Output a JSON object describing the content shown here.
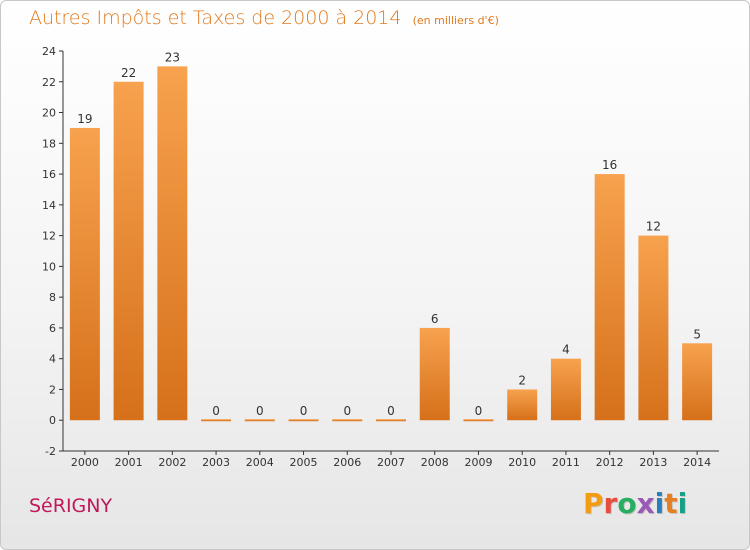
{
  "header": {
    "title": "Autres Impôts et Taxes de 2000 à 2014",
    "subtitle": "(en milliers d'€)"
  },
  "footer": {
    "commune": "SéRIGNY",
    "logo_text": "Proxiti",
    "logo_colors": [
      "#f39c12",
      "#e74c3c",
      "#27ae60",
      "#9b59b6",
      "#2980b9",
      "#e67e22",
      "#16a085"
    ]
  },
  "colors": {
    "bar_light": "#f6a04d",
    "bar_dark": "#d9731c",
    "title": "#e07a1f",
    "commune": "#c2185b"
  },
  "chart_data": {
    "type": "bar",
    "title": "Autres Impôts et Taxes de 2000 à 2014",
    "xlabel": "",
    "ylabel": "",
    "categories": [
      "2000",
      "2001",
      "2002",
      "2003",
      "2004",
      "2005",
      "2006",
      "2007",
      "2008",
      "2009",
      "2010",
      "2011",
      "2012",
      "2013",
      "2014"
    ],
    "values": [
      19,
      22,
      23,
      0,
      0,
      0,
      0,
      0,
      6,
      0,
      2,
      4,
      16,
      12,
      5
    ],
    "ylim": [
      -2,
      24
    ],
    "yticks": [
      -2,
      0,
      2,
      4,
      6,
      8,
      10,
      12,
      14,
      16,
      18,
      20,
      22,
      24
    ],
    "grid": false,
    "legend": "none"
  }
}
